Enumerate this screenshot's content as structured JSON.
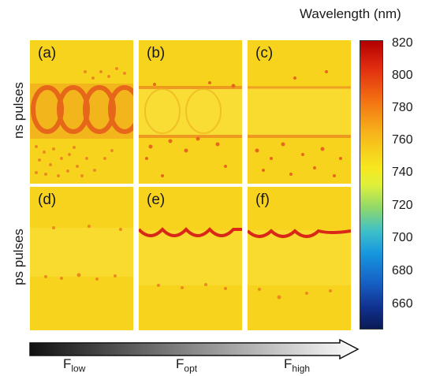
{
  "colorbar": {
    "title": "Wavelength  (nm)",
    "ticks": [
      "820",
      "800",
      "780",
      "760",
      "740",
      "720",
      "700",
      "680",
      "660"
    ]
  },
  "row_labels": {
    "top": "ns pulses",
    "bottom": "ps pulses"
  },
  "panels": [
    {
      "id": "a",
      "label": "(a)"
    },
    {
      "id": "b",
      "label": "(b)"
    },
    {
      "id": "c",
      "label": "(c)"
    },
    {
      "id": "d",
      "label": "(d)"
    },
    {
      "id": "e",
      "label": "(e)"
    },
    {
      "id": "f",
      "label": "(f)"
    }
  ],
  "fluence": {
    "low": {
      "main": "F",
      "sub": "low"
    },
    "opt": {
      "main": "F",
      "sub": "opt"
    },
    "high": {
      "main": "F",
      "sub": "high"
    }
  },
  "colors": {
    "base": "#f7d31d",
    "line": "#e0321a",
    "dots": "#e8781f"
  }
}
